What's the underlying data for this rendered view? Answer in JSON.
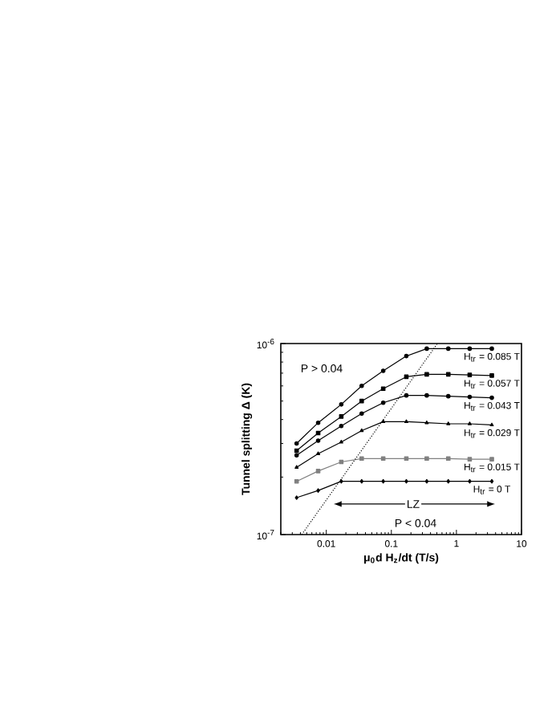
{
  "chart_data": {
    "type": "line",
    "xlabel": "μ$_{0}$d H$_{z}$/dt  (T/s)",
    "ylabel": "Tunnel splitting Δ (K)",
    "log": "xy",
    "xlim": [
      0.002,
      10
    ],
    "ylim": [
      1e-07,
      1e-06
    ],
    "xticks": [
      0.01,
      0.1,
      1,
      10
    ],
    "yticks": [
      {
        "value": 1e-07,
        "label": "10$^{-7}$"
      },
      {
        "value": 1e-06,
        "label": "10$^{-6}$"
      }
    ],
    "grid": false,
    "x": [
      0.0035,
      0.0075,
      0.017,
      0.035,
      0.075,
      0.17,
      0.35,
      0.75,
      1.6,
      3.5
    ],
    "series": [
      {
        "name": "H$_{tr}$ = 0.085 T",
        "color": "#000000",
        "marker": "circle",
        "values": [
          3e-07,
          3.85e-07,
          4.8e-07,
          6e-07,
          7.2e-07,
          8.6e-07,
          9.4e-07,
          9.4e-07,
          9.4e-07,
          9.4e-07
        ]
      },
      {
        "name": "H$_{tr}$ = 0.057 T",
        "color": "#000000",
        "marker": "square",
        "values": [
          2.75e-07,
          3.4e-07,
          4.15e-07,
          5e-07,
          5.8e-07,
          6.7e-07,
          6.9e-07,
          6.9e-07,
          6.85e-07,
          6.8e-07
        ]
      },
      {
        "name": "H$_{tr}$ = 0.043 T",
        "color": "#000000",
        "marker": "circle",
        "values": [
          2.6e-07,
          3.1e-07,
          3.7e-07,
          4.3e-07,
          4.9e-07,
          5.35e-07,
          5.35e-07,
          5.3e-07,
          5.25e-07,
          5.2e-07
        ]
      },
      {
        "name": "H$_{tr}$ = 0.029 T",
        "color": "#000000",
        "marker": "triangle",
        "values": [
          2.25e-07,
          2.65e-07,
          3.05e-07,
          3.5e-07,
          3.9e-07,
          3.9e-07,
          3.85e-07,
          3.8e-07,
          3.8e-07,
          3.75e-07
        ]
      },
      {
        "name": "H$_{tr}$ = 0.015 T",
        "color": "#808080",
        "marker": "square",
        "values": [
          1.9e-07,
          2.15e-07,
          2.4e-07,
          2.5e-07,
          2.5e-07,
          2.5e-07,
          2.5e-07,
          2.5e-07,
          2.48e-07,
          2.48e-07
        ]
      },
      {
        "name": "H$_{tr}$ = 0 T",
        "color": "#000000",
        "marker": "diamond",
        "values": [
          1.56e-07,
          1.7e-07,
          1.9e-07,
          1.9e-07,
          1.9e-07,
          1.9e-07,
          1.9e-07,
          1.9e-07,
          1.9e-07,
          1.9e-07
        ]
      },
      {
        "type": "line",
        "color": "#000000",
        "marker": "none",
        "line_style": "dotted",
        "x": [
          0.0042,
          0.51
        ],
        "values": [
          1e-07,
          1e-06
        ]
      }
    ],
    "annotations": [
      "P > 0.04",
      "LZ",
      "P < 0.04"
    ]
  }
}
